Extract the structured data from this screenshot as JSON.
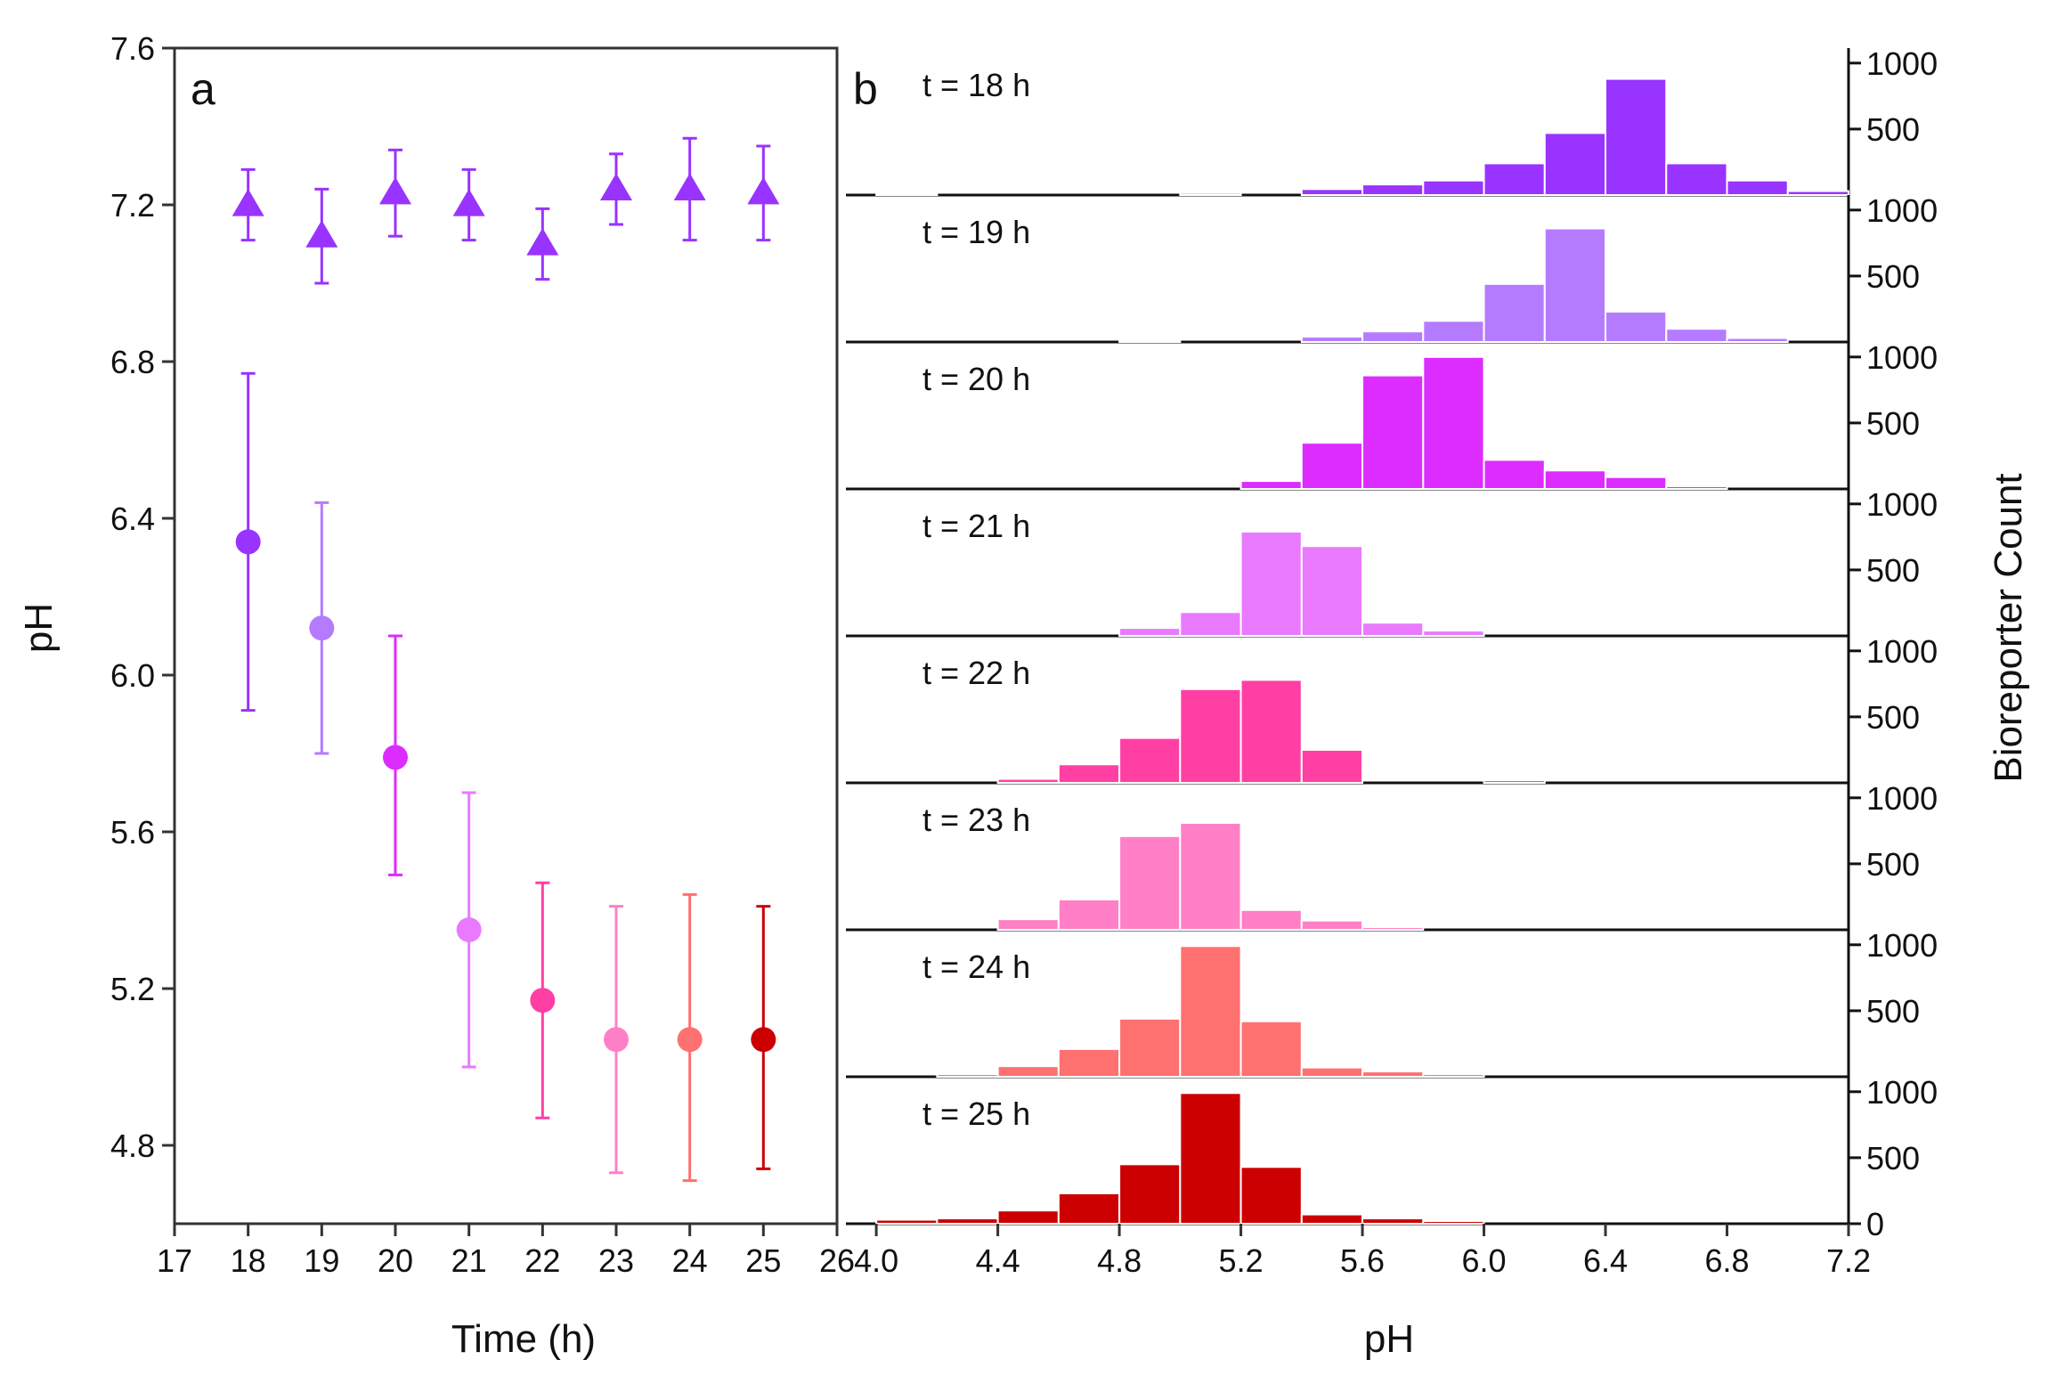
{
  "chart_data": [
    {
      "panel": "a",
      "type": "scatter",
      "xlabel": "Time (h)",
      "ylabel": "pH",
      "xlim": [
        17,
        26
      ],
      "ylim": [
        4.6,
        7.6
      ],
      "xticks": [
        "17",
        "18",
        "19",
        "20",
        "21",
        "22",
        "23",
        "24",
        "25",
        "26"
      ],
      "yticks": [
        "4.8",
        "5.2",
        "5.6",
        "6.0",
        "6.4",
        "6.8",
        "7.2",
        "7.6"
      ],
      "series": [
        {
          "name": "triangles",
          "marker": "triangle",
          "color": "#9933ff",
          "points": [
            {
              "x": 18,
              "y": 7.2,
              "err_low": 7.11,
              "err_high": 7.29
            },
            {
              "x": 19,
              "y": 7.12,
              "err_low": 7.0,
              "err_high": 7.24
            },
            {
              "x": 20,
              "y": 7.23,
              "err_low": 7.12,
              "err_high": 7.34
            },
            {
              "x": 21,
              "y": 7.2,
              "err_low": 7.11,
              "err_high": 7.29
            },
            {
              "x": 22,
              "y": 7.1,
              "err_low": 7.01,
              "err_high": 7.19
            },
            {
              "x": 23,
              "y": 7.24,
              "err_low": 7.15,
              "err_high": 7.33
            },
            {
              "x": 24,
              "y": 7.24,
              "err_low": 7.11,
              "err_high": 7.37
            },
            {
              "x": 25,
              "y": 7.23,
              "err_low": 7.11,
              "err_high": 7.35
            }
          ]
        },
        {
          "name": "circles",
          "marker": "circle",
          "points": [
            {
              "x": 18,
              "y": 6.34,
              "err_low": 5.91,
              "err_high": 6.77,
              "color": "#9933ff"
            },
            {
              "x": 19,
              "y": 6.12,
              "err_low": 5.8,
              "err_high": 6.44,
              "color": "#b57bff"
            },
            {
              "x": 20,
              "y": 5.79,
              "err_low": 5.49,
              "err_high": 6.1,
              "color": "#dd2cff"
            },
            {
              "x": 21,
              "y": 5.35,
              "err_low": 5.0,
              "err_high": 5.7,
              "color": "#e97aff"
            },
            {
              "x": 22,
              "y": 5.17,
              "err_low": 4.87,
              "err_high": 5.47,
              "color": "#ff3fa4"
            },
            {
              "x": 23,
              "y": 5.07,
              "err_low": 4.73,
              "err_high": 5.41,
              "color": "#ff80c6"
            },
            {
              "x": 24,
              "y": 5.07,
              "err_low": 4.71,
              "err_high": 5.44,
              "color": "#ff7070"
            },
            {
              "x": 25,
              "y": 5.07,
              "err_low": 4.74,
              "err_high": 5.41,
              "color": "#cc0000"
            }
          ]
        }
      ]
    },
    {
      "panel": "b",
      "type": "bar",
      "xlabel": "pH",
      "ylabel": "Bioreporter Count",
      "xlim": [
        3.9,
        7.2
      ],
      "ylim": [
        0,
        1100
      ],
      "xticks": [
        "4.0",
        "4.4",
        "4.8",
        "5.2",
        "5.6",
        "6.0",
        "6.4",
        "6.8",
        "7.2"
      ],
      "yticks": [
        "0",
        "500",
        "1000"
      ],
      "bin_starts": [
        4.0,
        4.2,
        4.4,
        4.6,
        4.8,
        5.0,
        5.2,
        5.4,
        5.6,
        5.8,
        6.0,
        6.2,
        6.4,
        6.6,
        6.8,
        7.0
      ],
      "bin_width": 0.2,
      "series": [
        {
          "name": "t = 18 h",
          "color": "#9933ff",
          "values": [
            10,
            0,
            0,
            0,
            0,
            15,
            0,
            45,
            80,
            110,
            240,
            470,
            880,
            240,
            110,
            30
          ]
        },
        {
          "name": "t = 19 h",
          "color": "#b57bff",
          "values": [
            0,
            0,
            0,
            0,
            10,
            0,
            0,
            40,
            80,
            160,
            440,
            860,
            230,
            100,
            30,
            0
          ]
        },
        {
          "name": "t = 20 h",
          "color": "#dd2cff",
          "values": [
            0,
            0,
            0,
            0,
            0,
            0,
            60,
            350,
            860,
            1000,
            220,
            140,
            90,
            20,
            0,
            0
          ]
        },
        {
          "name": "t = 21 h",
          "color": "#e97aff",
          "values": [
            0,
            0,
            0,
            0,
            60,
            180,
            790,
            680,
            100,
            40,
            0,
            0,
            0,
            0,
            0,
            0
          ]
        },
        {
          "name": "t = 22 h",
          "color": "#ff3fa4",
          "values": [
            0,
            0,
            30,
            140,
            340,
            710,
            780,
            250,
            0,
            0,
            20,
            0,
            0,
            0,
            0,
            0
          ]
        },
        {
          "name": "t = 23 h",
          "color": "#ff80c6",
          "values": [
            0,
            0,
            80,
            230,
            710,
            810,
            150,
            70,
            20,
            0,
            0,
            0,
            0,
            0,
            0,
            0
          ]
        },
        {
          "name": "t = 24 h",
          "color": "#ff7070",
          "values": [
            0,
            20,
            80,
            210,
            440,
            990,
            420,
            70,
            40,
            20,
            0,
            0,
            0,
            0,
            0,
            0
          ]
        },
        {
          "name": "t = 25 h",
          "color": "#cc0000",
          "values": [
            30,
            40,
            100,
            230,
            450,
            990,
            430,
            70,
            40,
            20,
            0,
            0,
            0,
            0,
            0,
            0
          ]
        }
      ]
    }
  ]
}
